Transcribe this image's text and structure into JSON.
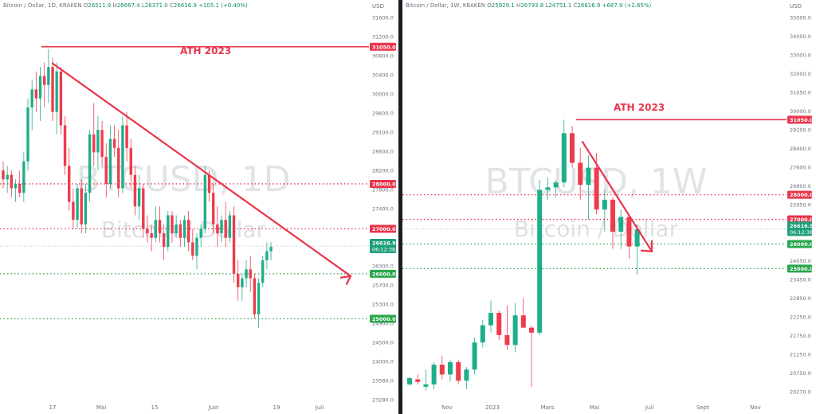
{
  "left": {
    "header": {
      "symbol": "Bitcoin / Dollar, 1D, KRAKEN",
      "o_label": "O",
      "o": "26511.9",
      "h_label": "H",
      "h": "26667.4",
      "l_label": "L",
      "l": "26371.0",
      "c_label": "C",
      "c": "26616.9",
      "chg": "+105.1 (+0.40%)"
    },
    "currency": "USD",
    "watermark_symbol": "BTCUSD, 1D",
    "watermark_name": "Bitcoin / Dollar",
    "annotation": "ATH 2023",
    "price_badge": {
      "price": "26616.9",
      "countdown": "06:12:38"
    },
    "level_badges": [
      "31050.0",
      "28000.0",
      "27000.0",
      "26000.0",
      "25000.0"
    ],
    "y_ticks": [
      "31600.0",
      "31200.0",
      "30800.0",
      "30400.0",
      "30000.0",
      "29600.0",
      "29100.0",
      "28600.0",
      "28200.0",
      "27800.0",
      "27400.0",
      "27100.0",
      "26800.0",
      "26300.0",
      "25700.0",
      "25300.0",
      "24900.0",
      "24500.0",
      "24000.0",
      "23580.0",
      "23280.0"
    ],
    "x_ticks": [
      "17",
      "Mai",
      "15",
      "Juin",
      "19",
      "Juil"
    ],
    "colors": {
      "up": "#1fae8a",
      "down": "#ee3b4d",
      "resistance": "#e8354b",
      "support": "#27a74a",
      "trend": "#e8354b"
    }
  },
  "right": {
    "header": {
      "symbol": "Bitcoin / Dollar, 1W, KRAKEN",
      "o_label": "O",
      "o": "25929.1",
      "h_label": "H",
      "h": "26793.8",
      "l_label": "L",
      "l": "24751.1",
      "c_label": "C",
      "c": "26616.9",
      "chg": "+687.9 (+2.65%)"
    },
    "currency": "USD",
    "watermark_symbol": "BTCUSD, 1W",
    "watermark_name": "Bitcoin / Dollar",
    "annotation": "ATH 2023",
    "price_badge": {
      "price": "26616.9",
      "countdown": "06:12:38"
    },
    "level_badges": [
      "31050.0",
      "28000.0",
      "27000.0",
      "26000.0",
      "25000.0"
    ],
    "y_ticks": [
      "35000.0",
      "34000.0",
      "33000.0",
      "32000.0",
      "31050.0",
      "30000.0",
      "29200.0",
      "28400.0",
      "27600.0",
      "26800.0",
      "25950.0",
      "25250.0",
      "24650.0",
      "24050.0",
      "23450.0",
      "22850.0",
      "22250.0",
      "21750.0",
      "21250.0",
      "20750.0",
      "20270.0"
    ],
    "x_ticks": [
      "Nov",
      "2023",
      "Mars",
      "Mai",
      "Juil",
      "Sept",
      "Nov"
    ],
    "colors": {
      "up": "#1fae8a",
      "down": "#ee3b4d",
      "resistance": "#e8354b",
      "support": "#27a74a",
      "trend": "#e8354b"
    }
  },
  "chart_data": [
    {
      "type": "candlestick",
      "title": "Bitcoin / Dollar, 1D, KRAKEN",
      "ylabel": "USD",
      "ylim": [
        23200,
        31700
      ],
      "levels": [
        {
          "price": 31050,
          "kind": "resistance",
          "style": "solid"
        },
        {
          "price": 28000,
          "kind": "resistance",
          "style": "dotted"
        },
        {
          "price": 27000,
          "kind": "resistance",
          "style": "dotted"
        },
        {
          "price": 26000,
          "kind": "support",
          "style": "dotted"
        },
        {
          "price": 25000,
          "kind": "support",
          "style": "dotted"
        }
      ],
      "current_price": 26616.9,
      "ohlc": [
        [
          28300,
          28500,
          27900,
          28100
        ],
        [
          28100,
          28400,
          27800,
          28200
        ],
        [
          28200,
          28300,
          27700,
          27900
        ],
        [
          27900,
          28100,
          27600,
          28000
        ],
        [
          28000,
          28300,
          27700,
          27800
        ],
        [
          27800,
          28700,
          27600,
          28500
        ],
        [
          28500,
          29900,
          28300,
          29700
        ],
        [
          29700,
          30300,
          29200,
          30100
        ],
        [
          30100,
          30500,
          29600,
          29900
        ],
        [
          29900,
          30600,
          29400,
          30400
        ],
        [
          30400,
          30700,
          29700,
          30200
        ],
        [
          30200,
          31000,
          29800,
          30600
        ],
        [
          30600,
          30800,
          29400,
          29600
        ],
        [
          29600,
          30700,
          29100,
          30500
        ],
        [
          30500,
          30600,
          29100,
          29300
        ],
        [
          29300,
          29500,
          28200,
          28400
        ],
        [
          28400,
          28800,
          27400,
          27600
        ],
        [
          27600,
          27900,
          27000,
          27200
        ],
        [
          27200,
          28000,
          27000,
          27900
        ],
        [
          27900,
          28100,
          26900,
          27100
        ],
        [
          27100,
          28000,
          26900,
          27800
        ],
        [
          27800,
          29200,
          27600,
          29100
        ],
        [
          29100,
          29800,
          28400,
          28700
        ],
        [
          28700,
          29500,
          28300,
          29200
        ],
        [
          29200,
          29400,
          28400,
          28600
        ],
        [
          28600,
          28900,
          27700,
          28000
        ],
        [
          28000,
          29300,
          27900,
          29000
        ],
        [
          29000,
          29300,
          28600,
          28800
        ],
        [
          28800,
          29200,
          27700,
          27900
        ],
        [
          27900,
          29500,
          27800,
          29300
        ],
        [
          29300,
          29600,
          28500,
          28800
        ],
        [
          28800,
          29000,
          27900,
          28200
        ],
        [
          28200,
          28400,
          27300,
          27500
        ],
        [
          27500,
          28200,
          27200,
          27900
        ],
        [
          27900,
          28000,
          26800,
          27000
        ],
        [
          27000,
          27300,
          26700,
          26900
        ],
        [
          26900,
          27100,
          26500,
          26800
        ],
        [
          26800,
          27500,
          26700,
          27200
        ],
        [
          27200,
          27500,
          26700,
          26900
        ],
        [
          26900,
          27100,
          26300,
          26600
        ],
        [
          26600,
          27400,
          26500,
          27300
        ],
        [
          27300,
          27400,
          26700,
          26900
        ],
        [
          26900,
          27300,
          26800,
          27100
        ],
        [
          27100,
          27200,
          26600,
          26800
        ],
        [
          26800,
          27300,
          26600,
          27200
        ],
        [
          27200,
          27400,
          26500,
          26700
        ],
        [
          26700,
          27000,
          26300,
          26400
        ],
        [
          26400,
          26900,
          26100,
          26800
        ],
        [
          26800,
          27100,
          26600,
          27000
        ],
        [
          27000,
          28400,
          26900,
          28200
        ],
        [
          28200,
          28300,
          27600,
          27800
        ],
        [
          27800,
          28000,
          26900,
          27100
        ],
        [
          27100,
          27500,
          26600,
          26900
        ],
        [
          26900,
          27300,
          26700,
          27200
        ],
        [
          27200,
          27600,
          26600,
          26800
        ],
        [
          26800,
          27400,
          26700,
          27300
        ],
        [
          27300,
          27500,
          25800,
          26000
        ],
        [
          26000,
          26300,
          25400,
          25700
        ],
        [
          25700,
          26000,
          25400,
          25900
        ],
        [
          25900,
          26300,
          25700,
          26100
        ],
        [
          26100,
          26400,
          25600,
          25900
        ],
        [
          25900,
          26000,
          25000,
          25100
        ],
        [
          25100,
          25900,
          24800,
          25800
        ],
        [
          25800,
          26400,
          25700,
          26300
        ],
        [
          26300,
          26700,
          26100,
          26500
        ],
        [
          26500,
          26700,
          26300,
          26600
        ]
      ]
    },
    {
      "type": "candlestick",
      "title": "Bitcoin / Dollar, 1W, KRAKEN",
      "ylabel": "USD",
      "ylim": [
        20000,
        35200
      ],
      "levels": [
        {
          "price": 31050,
          "kind": "resistance",
          "style": "solid"
        },
        {
          "price": 28000,
          "kind": "resistance",
          "style": "dotted"
        },
        {
          "price": 27000,
          "kind": "resistance",
          "style": "dotted"
        },
        {
          "price": 26000,
          "kind": "support",
          "style": "dotted"
        },
        {
          "price": 25000,
          "kind": "support",
          "style": "dotted"
        }
      ],
      "current_price": 26616.9,
      "ohlc": [
        [
          20300,
          20600,
          20250,
          20550
        ],
        [
          20500,
          20700,
          20300,
          20400
        ],
        [
          20200,
          20900,
          20050,
          20300
        ],
        [
          20300,
          21200,
          20100,
          21100
        ],
        [
          21100,
          21450,
          20500,
          20700
        ],
        [
          20700,
          21300,
          20400,
          21200
        ],
        [
          21200,
          21300,
          20300,
          20450
        ],
        [
          20450,
          21000,
          20100,
          20900
        ],
        [
          20900,
          22200,
          20700,
          22000
        ],
        [
          22000,
          22900,
          21800,
          22700
        ],
        [
          22700,
          23700,
          22400,
          23200
        ],
        [
          23200,
          23300,
          22100,
          22300
        ],
        [
          22300,
          23500,
          21700,
          21900
        ],
        [
          21900,
          23600,
          21600,
          23100
        ],
        [
          23100,
          23800,
          22600,
          22600
        ],
        [
          22600,
          22700,
          20200,
          22400
        ],
        [
          22400,
          28600,
          22300,
          28200
        ],
        [
          28200,
          28700,
          27800,
          28300
        ],
        [
          28300,
          28600,
          27900,
          28500
        ],
        [
          28500,
          31050,
          28300,
          30500
        ],
        [
          30500,
          30800,
          29100,
          29300
        ],
        [
          29300,
          29900,
          27800,
          28400
        ],
        [
          28400,
          29600,
          27000,
          29100
        ],
        [
          29100,
          29700,
          27200,
          27400
        ],
        [
          27400,
          28200,
          26500,
          27800
        ],
        [
          27800,
          27900,
          25800,
          26500
        ],
        [
          26500,
          27400,
          25800,
          27100
        ],
        [
          27100,
          27200,
          25400,
          25900
        ],
        [
          25900,
          26800,
          24750,
          26600
        ]
      ]
    }
  ]
}
